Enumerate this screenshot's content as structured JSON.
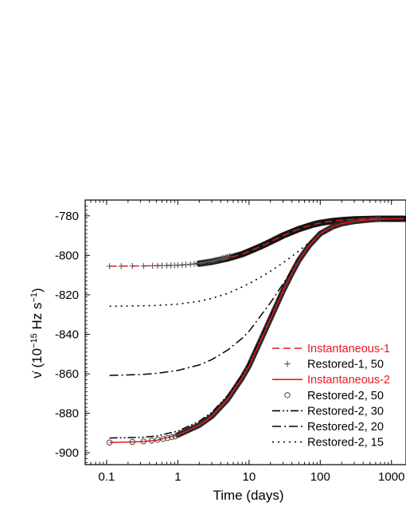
{
  "chart_data": {
    "type": "line",
    "xlabel": "Time (days)",
    "ylabel": {
      "symbol": "ν̇",
      "open": " (10",
      "exp1": "−15",
      "unit": " Hz s",
      "exp2": "−1",
      "close": ")"
    },
    "x_scale": "log",
    "xlim": [
      0.05,
      1600
    ],
    "ylim": [
      -906,
      -772
    ],
    "xticks": [
      0.1,
      1,
      10,
      100,
      1000
    ],
    "xtick_labels": [
      "0.1",
      "1",
      "10",
      "100",
      "1000"
    ],
    "yticks": [
      -900,
      -880,
      -860,
      -840,
      -820,
      -800,
      -780
    ],
    "ytick_labels": [
      "-900",
      "-880",
      "-860",
      "-840",
      "-820",
      "-800",
      "-780"
    ],
    "grid": false,
    "legend_position": "bottom-right",
    "series": [
      {
        "name": "Instantaneous-1",
        "style": "dashed",
        "color": "#e8191c",
        "x": [
          0.11,
          0.3,
          1,
          2,
          3,
          5,
          8,
          10,
          15,
          20,
          30,
          50,
          80,
          100,
          150,
          200,
          300,
          500,
          650,
          1500
        ],
        "y": [
          -805.5,
          -805.4,
          -805.0,
          -804.2,
          -803.3,
          -801.6,
          -799.4,
          -798.0,
          -795.3,
          -793.1,
          -790.0,
          -786.7,
          -784.4,
          -783.6,
          -782.6,
          -782.2,
          -781.8,
          -781.6,
          -781.5,
          -781.5
        ]
      },
      {
        "name": "Restored-1, 50",
        "style": "plus",
        "color": "#555555",
        "x": [
          0.11,
          0.16,
          0.23,
          0.33,
          0.44,
          0.52,
          0.6,
          0.7,
          0.8,
          0.9,
          1.0,
          1.15,
          1.3,
          1.5,
          1.7,
          1.9,
          2.1,
          2.3,
          2.5,
          2.7,
          2.9,
          3.1,
          3.3,
          3.5,
          3.8,
          4.1,
          4.4,
          4.7,
          5.0,
          5.4
        ],
        "y": [
          -805.5,
          -805.5,
          -805.4,
          -805.4,
          -805.3,
          -805.3,
          -805.2,
          -805.2,
          -805.1,
          -805.1,
          -805.0,
          -804.9,
          -804.7,
          -804.5,
          -804.3,
          -804.1,
          -803.8,
          -803.6,
          -803.4,
          -803.2,
          -803.0,
          -802.8,
          -802.5,
          -802.3,
          -802.0,
          -801.6,
          -801.3,
          -801.0,
          -800.7,
          -800.3
        ]
      },
      {
        "name": "Instantaneous-2",
        "style": "solid",
        "color": "#e8191c",
        "x": [
          0.11,
          0.3,
          0.5,
          1,
          2,
          3,
          5,
          8,
          10,
          15,
          20,
          30,
          40,
          50,
          70,
          100,
          150,
          200,
          300,
          500,
          650,
          1500
        ],
        "y": [
          -894.8,
          -894.4,
          -893.7,
          -891.0,
          -886.0,
          -881.5,
          -873.0,
          -862.0,
          -856.0,
          -842.0,
          -832.0,
          -818.0,
          -809.0,
          -802.5,
          -795.0,
          -789.0,
          -785.5,
          -784.0,
          -782.8,
          -782.0,
          -781.7,
          -781.5
        ]
      },
      {
        "name": "Restored-2, 50",
        "style": "circle",
        "color": "#444444",
        "x": [
          0.11,
          0.23,
          0.33,
          0.43,
          0.52,
          0.62,
          0.72,
          0.82,
          0.92,
          650
        ],
        "y": [
          -894.8,
          -894.5,
          -894.2,
          -893.8,
          -893.4,
          -893.0,
          -892.5,
          -892.1,
          -891.7,
          -781.7
        ]
      },
      {
        "name": "Restored-2, 30",
        "style": "dashdotdot",
        "color": "#000000",
        "x": [
          0.11,
          0.3,
          0.5,
          1,
          2,
          3,
          5,
          8,
          10,
          15,
          20,
          30,
          40,
          50,
          70,
          100,
          150,
          200,
          300,
          500,
          1500
        ],
        "y": [
          -892.5,
          -892.2,
          -891.5,
          -889.0,
          -884.0,
          -879.5,
          -871.0,
          -860.5,
          -854.5,
          -841.0,
          -831.0,
          -817.5,
          -809.0,
          -802.5,
          -795.0,
          -789.0,
          -785.5,
          -784.0,
          -782.8,
          -782.0,
          -781.5
        ]
      },
      {
        "name": "Restored-2, 20",
        "style": "dashdot",
        "color": "#000000",
        "x": [
          0.11,
          0.3,
          0.5,
          1,
          2,
          3,
          5,
          8,
          10,
          15,
          20,
          30,
          40,
          50,
          70,
          100,
          150,
          200,
          300,
          500,
          1500
        ],
        "y": [
          -860.8,
          -860.4,
          -859.8,
          -858.3,
          -855.5,
          -852.8,
          -848.0,
          -842.0,
          -838.5,
          -830.0,
          -824.0,
          -814.5,
          -807.5,
          -802.0,
          -795.0,
          -789.0,
          -785.5,
          -784.0,
          -782.8,
          -782.0,
          -781.5
        ]
      },
      {
        "name": "Restored-2, 15",
        "style": "dotted",
        "color": "#000000",
        "x": [
          0.11,
          0.3,
          0.5,
          1,
          2,
          3,
          5,
          8,
          10,
          15,
          20,
          30,
          40,
          50,
          70,
          100,
          150,
          200,
          300,
          500,
          1500
        ],
        "y": [
          -825.8,
          -825.6,
          -825.4,
          -824.7,
          -823.2,
          -821.8,
          -819.3,
          -816.0,
          -814.3,
          -810.8,
          -808.0,
          -803.8,
          -800.5,
          -797.8,
          -793.5,
          -789.5,
          -786.0,
          -784.3,
          -783.0,
          -782.0,
          -781.5
        ]
      }
    ]
  }
}
